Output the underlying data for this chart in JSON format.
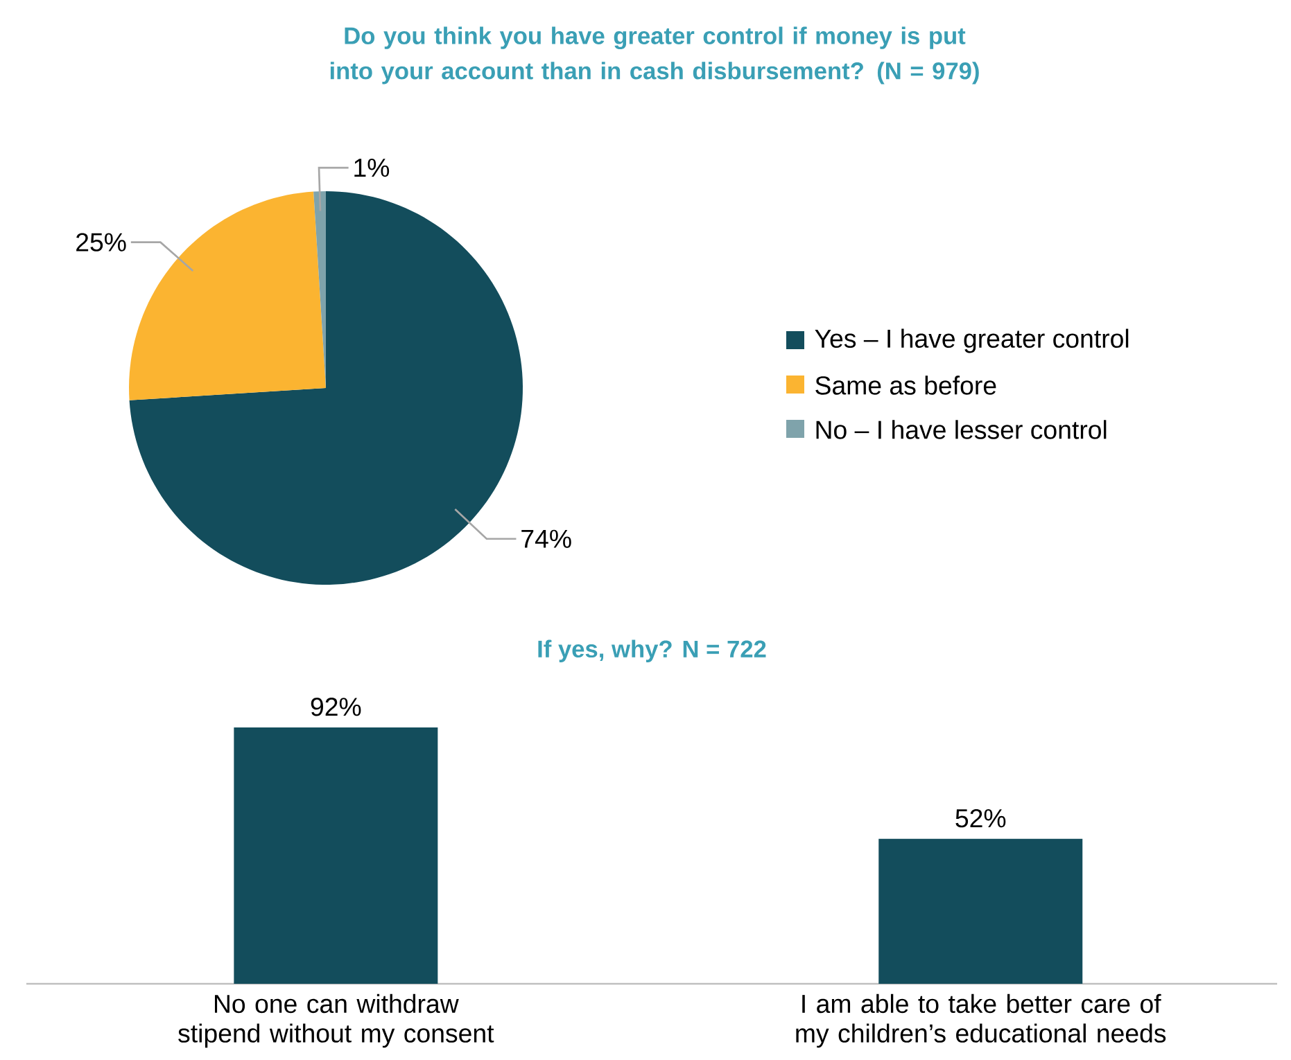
{
  "chart_data": [
    {
      "type": "pie",
      "title": "Do you think you have greater control if money is put into your account than in cash disbursement? (N = 979)",
      "categories": [
        "Yes – I have greater control",
        "Same as before",
        "No – I have lesser control"
      ],
      "values": [
        74,
        25,
        1
      ],
      "colors": [
        "#134d5c",
        "#fbb431",
        "#7fa3ab"
      ],
      "value_labels": [
        "74%",
        "25%",
        "1%"
      ],
      "legend": "right"
    },
    {
      "type": "bar",
      "title": "If yes, why? N = 722",
      "categories": [
        "No one can withdraw stipend without my consent",
        "I am able to take better care of my children’s educational needs"
      ],
      "values": [
        92,
        52
      ],
      "color": "#134d5c",
      "value_labels": [
        "92%",
        "52%"
      ]
    }
  ]
}
